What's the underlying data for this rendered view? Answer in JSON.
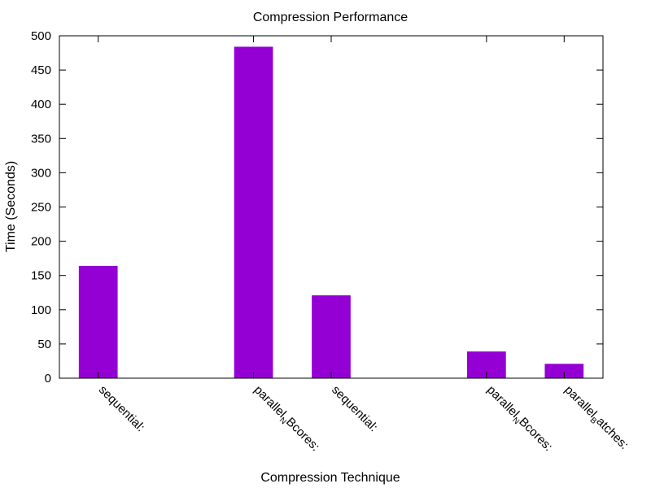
{
  "chart_data": {
    "type": "bar",
    "title": "Compression Performance",
    "xlabel": "Compression Technique",
    "ylabel": "Time (Seconds)",
    "categories": [
      "sequential:",
      "parallelNBcores:",
      "sequential:",
      "parallelNBcores:",
      "parallelBatches:"
    ],
    "category_label_parts": [
      [
        {
          "t": "sequential:",
          "sub": false
        }
      ],
      [
        {
          "t": "parallel",
          "sub": false
        },
        {
          "t": "N",
          "sub": true
        },
        {
          "t": "Bcores:",
          "sub": false
        }
      ],
      [
        {
          "t": "sequential:",
          "sub": false
        }
      ],
      [
        {
          "t": "parallel",
          "sub": false
        },
        {
          "t": "N",
          "sub": true
        },
        {
          "t": "Bcores:",
          "sub": false
        }
      ],
      [
        {
          "t": "parallel",
          "sub": false
        },
        {
          "t": "B",
          "sub": true
        },
        {
          "t": "atches:",
          "sub": false
        }
      ]
    ],
    "x": [
      0,
      2,
      3,
      5,
      6
    ],
    "xlim": [
      -0.5,
      6.5
    ],
    "values": [
      164,
      484,
      121,
      39,
      21
    ],
    "ylim": [
      0,
      500
    ],
    "yticks": [
      0,
      50,
      100,
      150,
      200,
      250,
      300,
      350,
      400,
      450,
      500
    ],
    "bar_color": "#9400d3",
    "grid": false,
    "legend": "none"
  }
}
